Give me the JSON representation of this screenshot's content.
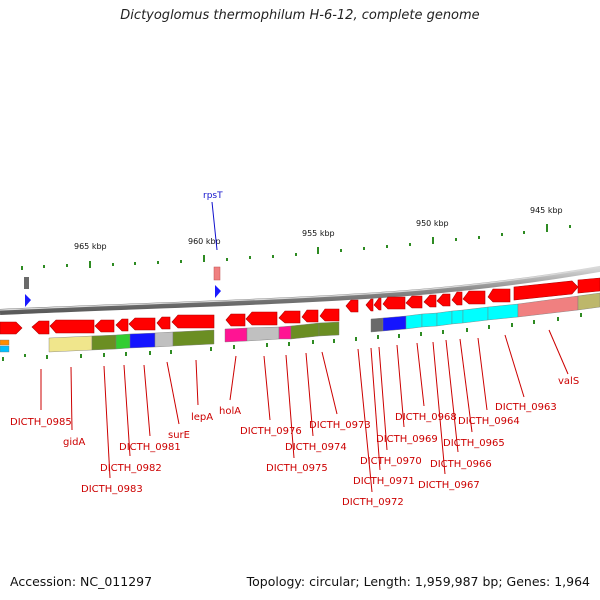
{
  "title": "Dictyoglomus thermophilum H-6-12, complete genome",
  "footer": {
    "accession": "Accession: NC_011297",
    "topology": "Topology: circular; Length: 1,959,987 bp; Genes: 1,964"
  },
  "colors": {
    "gene_red": "#ff0000",
    "tick_green": "#2e8b22",
    "label_red": "#cc0000",
    "label_blue": "#1010cc",
    "backbone": "#8a8a8a",
    "marker_blue": "#1a1aff"
  },
  "scale_labels": [
    "965 kbp",
    "960 kbp",
    "955 kbp",
    "950 kbp",
    "945 kbp"
  ],
  "top_feature": {
    "label": "rpsT"
  },
  "gene_labels": [
    "DICTH_0985",
    "gidA",
    "DICTH_0983",
    "DICTH_0982",
    "DICTH_0981",
    "surE",
    "lepA",
    "holA",
    "DICTH_0976",
    "DICTH_0975",
    "DICTH_0974",
    "DICTH_0973",
    "DICTH_0972",
    "DICTH_0971",
    "DICTH_0970",
    "DICTH_0969",
    "DICTH_0968",
    "DICTH_0967",
    "DICTH_0966",
    "DICTH_0965",
    "DICTH_0964",
    "DICTH_0963",
    "valS"
  ]
}
